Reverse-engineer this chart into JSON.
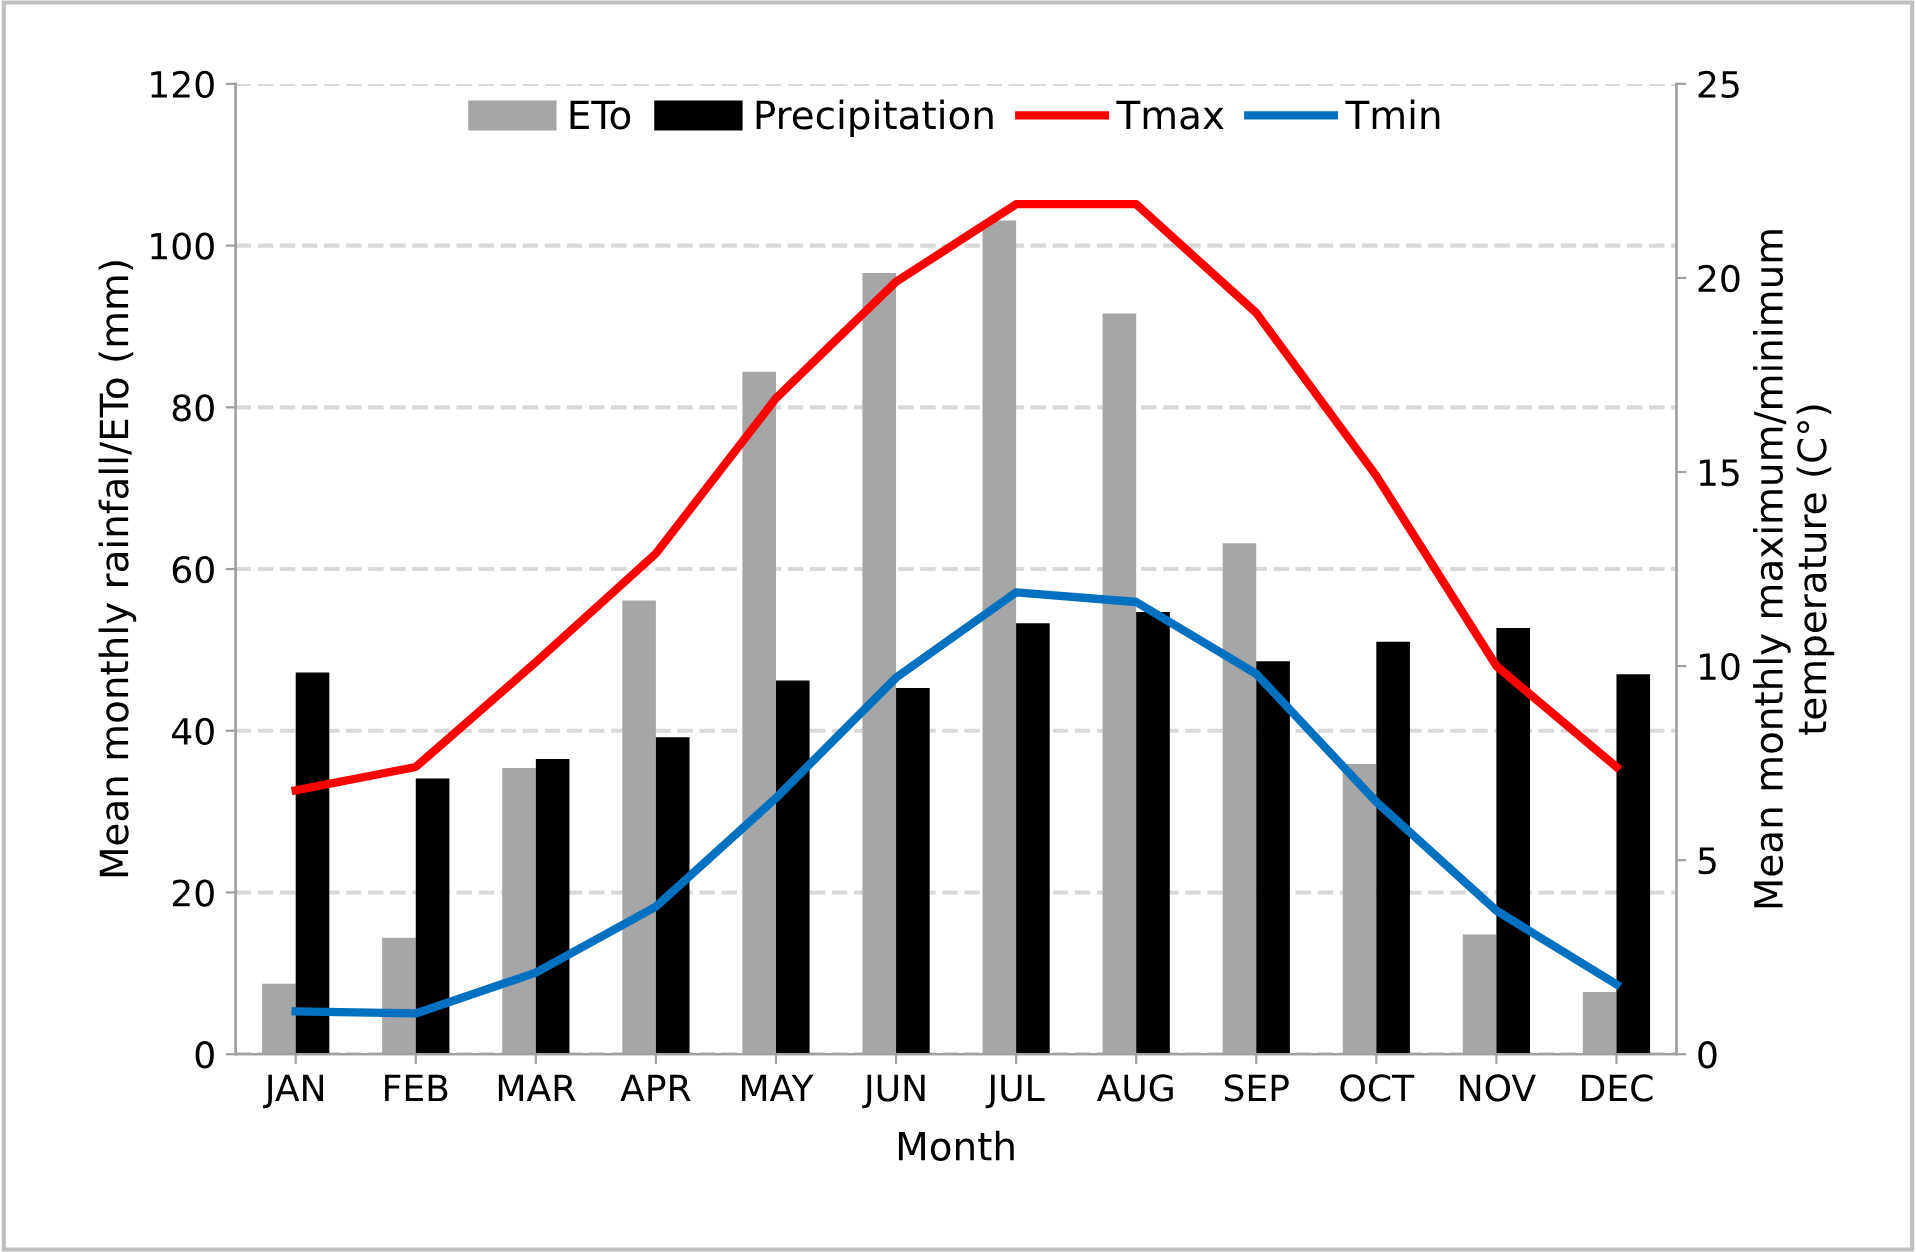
{
  "chart_data": {
    "type": "bar",
    "categories": [
      "JAN",
      "FEB",
      "MAR",
      "APR",
      "MAY",
      "JUN",
      "JUL",
      "AUG",
      "SEP",
      "OCT",
      "NOV",
      "DEC"
    ],
    "xlabel": "Month",
    "ylabel": "Mean monthly rainfall/ETo (mm)",
    "y2label": "Mean monthly maximum/minimum\ntemperature (C°)",
    "series": [
      {
        "name": "ETo",
        "color": "#a6a6a6",
        "values": [
          8.7,
          14.4,
          35.4,
          56.1,
          84.4,
          96.6,
          103.1,
          91.6,
          63.2,
          35.9,
          14.8,
          7.7
        ]
      },
      {
        "name": "Precipitation",
        "color": "#000000",
        "values": [
          47.2,
          34.1,
          36.5,
          39.2,
          46.2,
          45.3,
          53.3,
          54.7,
          48.6,
          51.0,
          52.7,
          47.0
        ]
      },
      {
        "name": "Tmax",
        "type": "line",
        "axis": "y2",
        "color": "#ff0000",
        "values": [
          6.8,
          7.4,
          10.1,
          12.9,
          16.9,
          19.9,
          21.9,
          21.9,
          19.1,
          14.9,
          10.0,
          7.4
        ]
      },
      {
        "name": "Tmin",
        "type": "line",
        "axis": "y2",
        "color": "#0070c0",
        "values": [
          1.1,
          1.05,
          2.1,
          3.8,
          6.6,
          9.7,
          11.9,
          11.65,
          9.8,
          6.5,
          3.7,
          1.8
        ]
      }
    ],
    "ylim": [
      0,
      120
    ],
    "yticks": [
      0,
      20,
      40,
      60,
      80,
      100,
      120
    ],
    "y2lim": [
      0,
      25
    ],
    "y2ticks": [
      0,
      5,
      10,
      15,
      20,
      25
    ],
    "grid": "y",
    "legend": "top",
    "marker": "none",
    "line_style": "solid"
  }
}
